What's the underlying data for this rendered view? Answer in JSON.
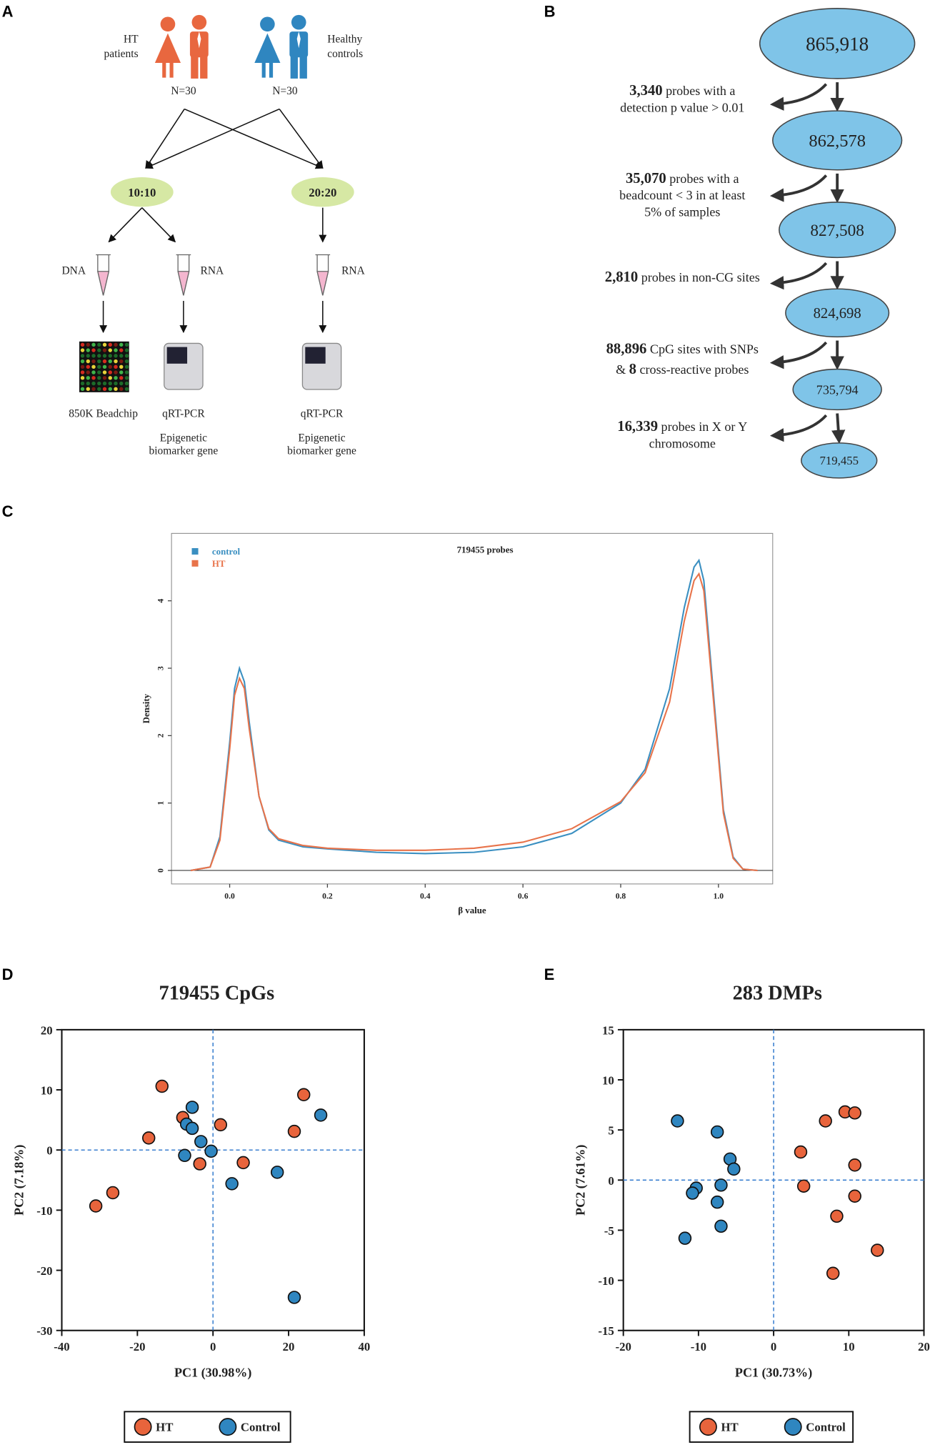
{
  "panels": [
    "A",
    "B",
    "C",
    "D",
    "E"
  ],
  "diagram_a": {
    "groups": [
      [
        "HT",
        "patients"
      ],
      [
        "Healthy",
        "controls"
      ]
    ],
    "n": [
      "N=30",
      "N=30"
    ],
    "designs": [
      "10:10",
      "20:20"
    ],
    "samples": [
      "DNA",
      "RNA",
      "RNA"
    ],
    "methods": [
      "850K Beadchip",
      "qRT-PCR",
      "qRT-PCR"
    ],
    "purposes": [
      [
        "Epigenetic",
        "biomarker gene"
      ],
      [
        "Epigenetic",
        "biomarker gene"
      ]
    ]
  },
  "flow_b": {
    "nodes": [
      "865,918",
      "862,578",
      "827,508",
      "824,698",
      "735,794",
      "719,455"
    ],
    "filters": [
      [
        [
          {
            "bold": "3,340"
          },
          {
            "text": " probes with a"
          }
        ],
        [
          {
            "text": "detection p value > 0.01"
          }
        ]
      ],
      [
        [
          {
            "bold": "35,070"
          },
          {
            "text": " probes with a"
          }
        ],
        [
          {
            "text": "beadcount < 3 in at least"
          }
        ],
        [
          {
            "text": "5% of samples"
          }
        ]
      ],
      [
        [
          {
            "bold": "2,810"
          },
          {
            "text": " probes in non-CG sites"
          }
        ]
      ],
      [
        [
          {
            "bold": "88,896"
          },
          {
            "text": " CpG sites with SNPs"
          }
        ],
        [
          {
            "text": "& "
          },
          {
            "bold": "8"
          },
          {
            "text": " cross-reactive probes"
          }
        ]
      ],
      [
        [
          {
            "bold": "16,339"
          },
          {
            "text": " probes in X or Y"
          }
        ],
        [
          {
            "text": "chromosome"
          }
        ]
      ]
    ]
  },
  "chart_data": [
    {
      "type": "line",
      "title": "719455 probes",
      "x_label": "β value",
      "y_label": "Density",
      "x": [
        -0.08,
        -0.04,
        -0.02,
        0,
        0.01,
        0.02,
        0.03,
        0.04,
        0.06,
        0.08,
        0.1,
        0.15,
        0.2,
        0.3,
        0.4,
        0.5,
        0.6,
        0.7,
        0.8,
        0.85,
        0.9,
        0.93,
        0.95,
        0.96,
        0.97,
        0.99,
        1.01,
        1.03,
        1.05,
        1.08
      ],
      "series": [
        {
          "name": "control",
          "color": "#3a8fc1",
          "values": [
            0,
            0.05,
            0.5,
            1.9,
            2.7,
            3.0,
            2.8,
            2.2,
            1.1,
            0.6,
            0.45,
            0.35,
            0.32,
            0.27,
            0.25,
            0.27,
            0.35,
            0.55,
            1.0,
            1.5,
            2.7,
            3.9,
            4.5,
            4.6,
            4.3,
            2.6,
            0.9,
            0.2,
            0.02,
            0
          ]
        },
        {
          "name": "HT",
          "color": "#e8734a",
          "values": [
            0,
            0.05,
            0.45,
            1.8,
            2.6,
            2.85,
            2.7,
            2.1,
            1.1,
            0.62,
            0.47,
            0.37,
            0.33,
            0.3,
            0.3,
            0.33,
            0.42,
            0.62,
            1.02,
            1.45,
            2.5,
            3.7,
            4.3,
            4.4,
            4.15,
            2.5,
            0.85,
            0.18,
            0.02,
            0
          ]
        }
      ],
      "xlim": [
        -0.119,
        1.111
      ],
      "ylim": [
        -0.2,
        5
      ],
      "xticks": [
        {
          "value": 0,
          "label": "0.0"
        },
        0.2,
        0.4,
        0.6,
        0.8,
        {
          "value": 1,
          "label": "1.0"
        }
      ],
      "yticks": [
        0,
        1,
        2,
        3,
        4
      ],
      "legend": "upper left"
    },
    {
      "type": "scatter",
      "title": "719455 CpGs",
      "x_label": "PC1 (30.98%)",
      "y_label": "PC2 (7.18%)",
      "series": [
        {
          "name": "HT",
          "color": "#e8643c",
          "x": [
            -31,
            -26.5,
            -17,
            -13.5,
            -8,
            -3.5,
            2,
            8,
            21.5,
            24
          ],
          "values": [
            -9.3,
            -7.1,
            2,
            10.6,
            5.4,
            -2.3,
            4.2,
            -2.1,
            3.1,
            9.2
          ]
        },
        {
          "name": "Control",
          "color": "#2f86c0",
          "x": [
            -5.5,
            -7,
            -5.5,
            -3.2,
            -7.5,
            -0.5,
            5,
            17,
            28.5,
            21.5
          ],
          "values": [
            7.1,
            4.3,
            3.6,
            1.4,
            -0.9,
            -0.2,
            -5.6,
            -3.7,
            5.8,
            -24.5
          ]
        }
      ],
      "xlim": [
        -40,
        40
      ],
      "ylim": [
        -30,
        20
      ],
      "xticks": [
        -40,
        -20,
        0,
        20,
        40
      ],
      "yticks": [
        -30,
        -20,
        -10,
        0,
        10,
        20
      ],
      "legend": "bottom"
    },
    {
      "type": "scatter",
      "title": "283 DMPs",
      "x_label": "PC1 (30.73%)",
      "y_label": "PC2 (7.61%)",
      "series": [
        {
          "name": "HT",
          "color": "#e8643c",
          "x": [
            9.5,
            10.8,
            6.9,
            3.6,
            10.8,
            4.0,
            10.8,
            8.4,
            13.8,
            7.9
          ],
          "values": [
            6.8,
            6.7,
            5.9,
            2.8,
            1.5,
            -0.6,
            -1.6,
            -3.6,
            -7.0,
            -9.3
          ]
        },
        {
          "name": "Control",
          "color": "#2f86c0",
          "x": [
            -12.8,
            -7.5,
            -5.8,
            -5.3,
            -7,
            -10.3,
            -10.8,
            -7.5,
            -7.0,
            -11.8
          ],
          "values": [
            5.9,
            4.8,
            2.1,
            1.1,
            -0.5,
            -0.8,
            -1.3,
            -2.2,
            -4.6,
            -5.8
          ]
        }
      ],
      "xlim": [
        -20,
        20
      ],
      "ylim": [
        -15,
        15
      ],
      "xticks": [
        -20,
        -10,
        0,
        10,
        20
      ],
      "yticks": [
        -15,
        -10,
        -5,
        0,
        5,
        10,
        15
      ],
      "legend": "bottom"
    }
  ]
}
